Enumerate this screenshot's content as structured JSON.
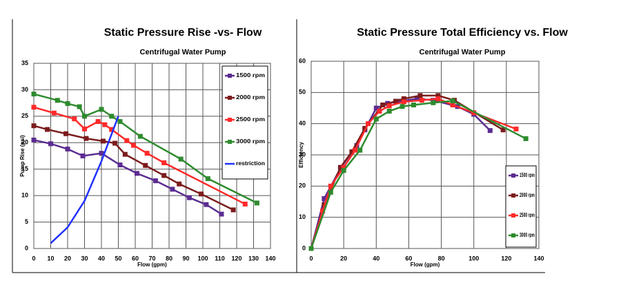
{
  "chart_data": [
    {
      "type": "line",
      "title": "Static Pressure Rise -vs- Flow",
      "subtitle": "Centrifugal Water Pump",
      "x_label": "Flow (gpm)",
      "y_label": "Pump Rise (psi)",
      "xlim": [
        0,
        140
      ],
      "xticks": [
        0,
        10,
        20,
        30,
        40,
        50,
        60,
        70,
        80,
        90,
        100,
        110,
        120,
        130,
        140
      ],
      "ylim": [
        0,
        35
      ],
      "yticks": [
        0,
        5,
        10,
        15,
        20,
        25,
        30,
        35
      ],
      "grid": true,
      "legend": "upper right",
      "series": [
        {
          "name": "1500 rpm",
          "color": "#5b2c91",
          "marker": "square",
          "x": [
            0,
            10,
            20,
            29,
            40,
            51,
            61,
            72,
            82,
            92,
            102,
            111
          ],
          "values": [
            20.5,
            19.8,
            18.8,
            17.5,
            18,
            15.8,
            14.2,
            12.8,
            11.2,
            9.6,
            8.3,
            6.5
          ]
        },
        {
          "name": "2000 rpm",
          "color": "#7b1c1c",
          "marker": "square",
          "x": [
            0,
            8,
            19,
            31,
            41,
            48,
            54,
            66,
            77,
            86,
            99,
            118
          ],
          "values": [
            23.2,
            22.5,
            21.7,
            20.8,
            20.3,
            19.9,
            17.8,
            15.7,
            13.8,
            12.2,
            10.3,
            7.3
          ]
        },
        {
          "name": "2500 rpm",
          "color": "#ff2a2a",
          "marker": "square",
          "x": [
            0,
            12,
            24,
            30,
            38,
            42,
            46,
            55,
            59,
            67,
            77,
            125
          ],
          "values": [
            26.7,
            25.6,
            24.5,
            22.6,
            24,
            23.4,
            22.5,
            20.4,
            19.5,
            18,
            16.2,
            8.4
          ]
        },
        {
          "name": "3000 rpm",
          "color": "#2e8b2e",
          "marker": "square",
          "x": [
            0,
            14,
            20,
            27,
            30,
            40,
            46,
            51,
            63,
            87,
            103,
            132
          ],
          "values": [
            29.2,
            28,
            27.4,
            26.8,
            25,
            26.3,
            25,
            24,
            21.2,
            16.9,
            13.2,
            8.6
          ]
        },
        {
          "name": "restriction",
          "color": "#2030ff",
          "marker": "none",
          "x": [
            10,
            20,
            30,
            40,
            50
          ],
          "values": [
            1,
            4,
            9,
            16.5,
            25
          ]
        }
      ]
    },
    {
      "type": "line",
      "title": "Static Pressure Total Efficiency vs. Flow",
      "subtitle": "Centrifugal Water Pump",
      "x_label": "Flow (gpm)",
      "y_label": "Efficiency",
      "xlim": [
        0,
        140
      ],
      "xticks": [
        0,
        20,
        40,
        60,
        80,
        100,
        120,
        140
      ],
      "ylim": [
        0,
        60
      ],
      "yticks": [
        0,
        10,
        20,
        30,
        40,
        50,
        60
      ],
      "grid": true,
      "legend": "lower right",
      "series": [
        {
          "name": "1500 rpm",
          "color": "#5b2c91",
          "marker": "square",
          "x": [
            0,
            8,
            18,
            28,
            33,
            40,
            47,
            55,
            65,
            75,
            90,
            100,
            110
          ],
          "values": [
            0,
            16,
            25.7,
            33,
            38,
            45,
            46.5,
            47.2,
            48,
            47.5,
            45.5,
            43,
            37.8
          ]
        },
        {
          "name": "2000 rpm",
          "color": "#7b1c1c",
          "marker": "square",
          "x": [
            0,
            8,
            18,
            25,
            33,
            44,
            52,
            57,
            67,
            78,
            88,
            118
          ],
          "values": [
            0,
            14,
            26,
            31,
            38.5,
            46,
            47.2,
            48,
            49,
            49,
            47.5,
            38
          ]
        },
        {
          "name": "2500 rpm",
          "color": "#ff2a2a",
          "marker": "square",
          "x": [
            0,
            7,
            12,
            20,
            27,
            35,
            42,
            48,
            57,
            68,
            78,
            87,
            100,
            126
          ],
          "values": [
            0,
            12,
            20,
            26,
            31.5,
            40,
            44,
            45.7,
            47,
            47.5,
            48,
            46,
            43.5,
            38.3
          ]
        },
        {
          "name": "3000 rpm",
          "color": "#2e8b2e",
          "marker": "square",
          "x": [
            0,
            12,
            20,
            30,
            40,
            48,
            56,
            63,
            75,
            87,
            132
          ],
          "values": [
            0,
            18,
            25,
            31.5,
            41.5,
            44,
            45.5,
            46,
            46.7,
            47.3,
            35.2
          ]
        }
      ]
    }
  ]
}
